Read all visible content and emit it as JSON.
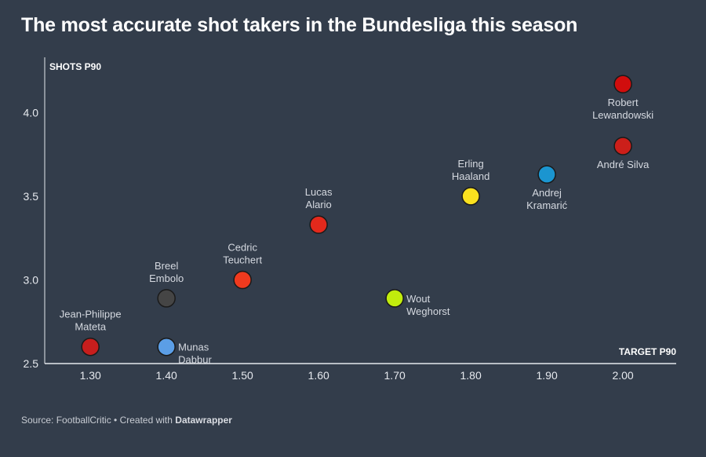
{
  "title": "The most accurate shot takers in the Bundesliga this season",
  "footer": {
    "source_text": "Source: FootballCritic • Created with ",
    "brand": "Datawrapper"
  },
  "chart_data": {
    "type": "scatter",
    "xlabel": "TARGET P90",
    "ylabel": "SHOTS P90",
    "xlim": [
      1.24,
      2.07
    ],
    "ylim": [
      2.5,
      4.33
    ],
    "x_ticks": [
      "1.30",
      "1.40",
      "1.50",
      "1.60",
      "1.70",
      "1.80",
      "1.90",
      "2.00"
    ],
    "y_ticks": [
      "2.5",
      "3.0",
      "3.5",
      "4.0"
    ],
    "grid": false,
    "points": [
      {
        "name": [
          "Jean-Philippe",
          "Mateta"
        ],
        "x": 1.3,
        "y": 2.6,
        "color": "#c71e1d",
        "label_pos": "above"
      },
      {
        "name": [
          "Munas",
          "Dabbur"
        ],
        "x": 1.4,
        "y": 2.6,
        "color": "#5b9ee6",
        "label_pos": "right"
      },
      {
        "name": [
          "Breel",
          "Embolo"
        ],
        "x": 1.4,
        "y": 2.89,
        "color": "#454545",
        "label_pos": "above"
      },
      {
        "name": [
          "Cedric",
          "Teuchert"
        ],
        "x": 1.5,
        "y": 3.0,
        "color": "#f03a1e",
        "label_pos": "above"
      },
      {
        "name": [
          "Lucas",
          "Alario"
        ],
        "x": 1.6,
        "y": 3.33,
        "color": "#e3291c",
        "label_pos": "above"
      },
      {
        "name": [
          "Wout",
          "Weghorst"
        ],
        "x": 1.7,
        "y": 2.89,
        "color": "#c1ec0d",
        "label_pos": "right"
      },
      {
        "name": [
          "Erling",
          "Haaland"
        ],
        "x": 1.8,
        "y": 3.5,
        "color": "#fae11f",
        "label_pos": "above"
      },
      {
        "name": [
          "Andrej",
          "Kramarić"
        ],
        "x": 1.9,
        "y": 3.63,
        "color": "#1b95d0",
        "label_pos": "below"
      },
      {
        "name": [
          "André Silva"
        ],
        "x": 2.0,
        "y": 3.8,
        "color": "#cc1f1a",
        "label_pos": "below"
      },
      {
        "name": [
          "Robert",
          "Lewandowski"
        ],
        "x": 2.0,
        "y": 4.17,
        "color": "#d10d0d",
        "label_pos": "below"
      }
    ]
  }
}
